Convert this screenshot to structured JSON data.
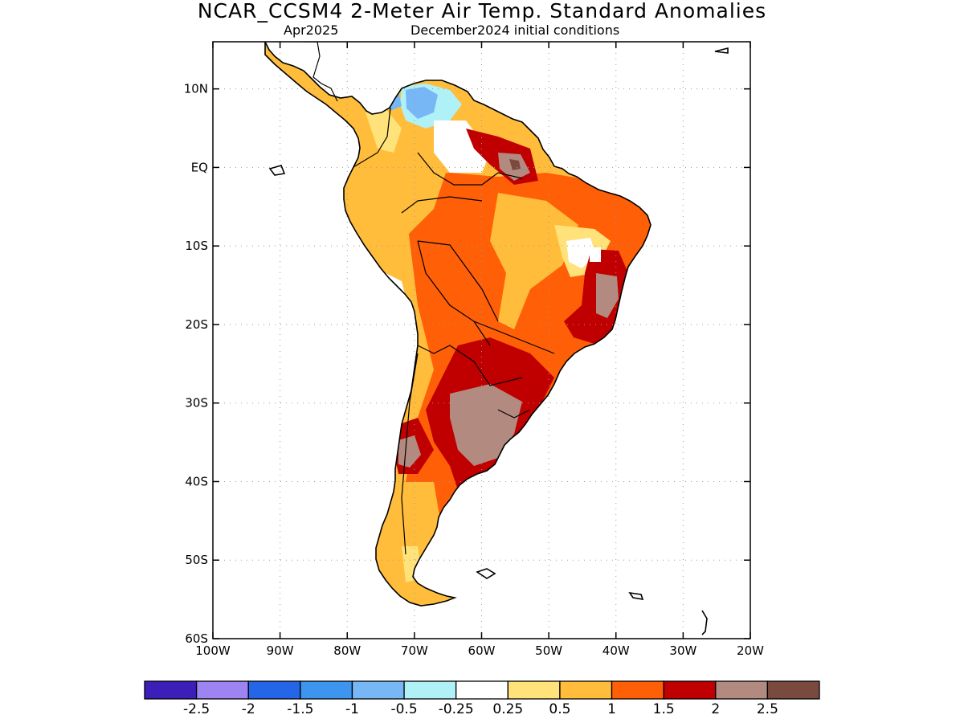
{
  "title": "NCAR_CCSM4 2-Meter Air Temp. Standard Anomalies",
  "subtitle_left": "Apr2025",
  "subtitle_right": "December2024 initial conditions",
  "map": {
    "lon_range": [
      -100,
      -20
    ],
    "lat_range": [
      -60,
      16
    ],
    "lon_ticks": [
      {
        "value": -100,
        "label": "100W"
      },
      {
        "value": -90,
        "label": "90W"
      },
      {
        "value": -80,
        "label": "80W"
      },
      {
        "value": -70,
        "label": "70W"
      },
      {
        "value": -60,
        "label": "60W"
      },
      {
        "value": -50,
        "label": "50W"
      },
      {
        "value": -40,
        "label": "40W"
      },
      {
        "value": -30,
        "label": "30W"
      },
      {
        "value": -20,
        "label": "20W"
      }
    ],
    "lat_ticks": [
      {
        "value": 10,
        "label": "10N"
      },
      {
        "value": 0,
        "label": "EQ"
      },
      {
        "value": -10,
        "label": "10S"
      },
      {
        "value": -20,
        "label": "20S"
      },
      {
        "value": -30,
        "label": "30S"
      },
      {
        "value": -40,
        "label": "40S"
      },
      {
        "value": -50,
        "label": "50S"
      },
      {
        "value": -60,
        "label": "60S"
      }
    ],
    "grid": "dotted"
  },
  "colorbar": {
    "colors": [
      "#3b1fb8",
      "#9d84f2",
      "#2565e8",
      "#3d95f0",
      "#77b7f5",
      "#b0f0f7",
      "#ffffff",
      "#ffe27a",
      "#ffbd3b",
      "#ff5f07",
      "#c00000",
      "#b38a80",
      "#7a4a3f"
    ],
    "labels": [
      "-2.5",
      "-2",
      "-1.5",
      "-1",
      "-0.5",
      "-0.25",
      "0.25",
      "0.5",
      "1",
      "1.5",
      "2",
      "2.5"
    ]
  }
}
